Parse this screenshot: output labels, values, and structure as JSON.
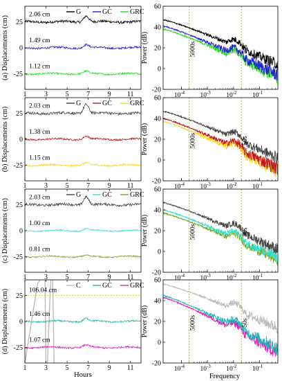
{
  "chart_data": [
    {
      "type": "line",
      "panel": "a",
      "ylabel": "(a) Displacements (cm)",
      "xlim": [
        1,
        12
      ],
      "ylim": [
        -40,
        40
      ],
      "xticks": [
        1,
        3,
        5,
        7,
        9,
        11
      ],
      "yticks": [
        -25,
        0,
        25
      ],
      "legend": [
        "G",
        "GC",
        "GRC"
      ],
      "series": [
        {
          "name": "G",
          "color": "#000000",
          "offset": 25,
          "noise": 1.2,
          "bump": 6
        },
        {
          "name": "GC",
          "color": "#1f1fd0",
          "offset": 0,
          "noise": 0.9,
          "bump": 3
        },
        {
          "name": "GRC",
          "color": "#22dd22",
          "offset": -25,
          "noise": 0.8,
          "bump": 2
        }
      ],
      "annotations": [
        "2.06 cm",
        "1.49 cm",
        "1.12 cm"
      ]
    },
    {
      "type": "line",
      "panel": "b",
      "ylabel": "(b) Displacements (cm)",
      "xlim": [
        1,
        12
      ],
      "ylim": [
        -40,
        40
      ],
      "xticks": [
        1,
        3,
        5,
        7,
        9,
        11
      ],
      "yticks": [
        -25,
        0,
        25
      ],
      "legend": [
        "G",
        "GC",
        "GRC"
      ],
      "series": [
        {
          "name": "G",
          "color": "#444444",
          "offset": 25,
          "noise": 1.2,
          "bump": 9
        },
        {
          "name": "GC",
          "color": "#c0181c",
          "offset": 0,
          "noise": 0.8,
          "bump": 3
        },
        {
          "name": "GRC",
          "color": "#ffd21a",
          "offset": -25,
          "noise": 0.8,
          "bump": 2
        }
      ],
      "annotations": [
        "2.03 cm",
        "1.38 cm",
        "1.15 cm"
      ]
    },
    {
      "type": "line",
      "panel": "c",
      "ylabel": "(c) Displacements (cm)",
      "xlim": [
        1,
        12
      ],
      "ylim": [
        -40,
        40
      ],
      "xticks": [
        1,
        3,
        5,
        7,
        9,
        11
      ],
      "yticks": [
        -25,
        0,
        25
      ],
      "legend": [
        "G",
        "GC",
        "GRC"
      ],
      "series": [
        {
          "name": "G",
          "color": "#444444",
          "offset": 25,
          "noise": 1.2,
          "bump": 8
        },
        {
          "name": "GC",
          "color": "#2ee0d0",
          "offset": 0,
          "noise": 0.6,
          "bump": 2
        },
        {
          "name": "GRC",
          "color": "#7aa81e",
          "offset": -25,
          "noise": 0.6,
          "bump": 1
        }
      ],
      "annotations": [
        "2.03 cm",
        "1.00 cm",
        "0.81 cm"
      ]
    },
    {
      "type": "line",
      "panel": "d",
      "ylabel": "(d) Displacements (cm)",
      "xlabel": "Hours",
      "xlim": [
        1,
        12
      ],
      "ylim": [
        -40,
        40
      ],
      "xticks": [
        1,
        3,
        5,
        7,
        9,
        11
      ],
      "yticks": [
        -25,
        0,
        25
      ],
      "legend": [
        "C",
        "GC",
        "GRC"
      ],
      "series": [
        {
          "name": "C",
          "color": "#bbbbbb",
          "offset": 0,
          "noise": 0,
          "bump": 0
        },
        {
          "name": "GC",
          "color": "#1fb8b0",
          "offset": 0,
          "noise": 0.8,
          "bump": 3
        },
        {
          "name": "GRC",
          "color": "#e020c0",
          "offset": -25,
          "noise": 0.8,
          "bump": 2
        }
      ],
      "annotations": [
        "106.04 cm",
        "1.46 cm",
        "1.07 cm"
      ]
    },
    {
      "type": "line",
      "panel": "a-psd",
      "ylabel": "Power (dB)",
      "xscale": "log",
      "xlim": [
        2e-05,
        0.5
      ],
      "ylim": [
        -20,
        60
      ],
      "yticks": [
        -20,
        0,
        20,
        40,
        60
      ],
      "xticklabels": [
        "10^-4",
        "10^-3",
        "10^-2",
        "10^-1"
      ],
      "vlines": [
        {
          "x": 0.0002,
          "label": "5000s"
        },
        {
          "x": 0.02,
          "label": "50s"
        }
      ],
      "series": [
        {
          "name": "G",
          "color": "#000000",
          "start": 47,
          "end": 4,
          "spread": 4
        },
        {
          "name": "GC",
          "color": "#1f1fd0",
          "start": 41,
          "end": -6,
          "spread": 5
        },
        {
          "name": "GRC",
          "color": "#22dd22",
          "start": 38,
          "end": -8,
          "spread": 5
        }
      ]
    },
    {
      "type": "line",
      "panel": "b-psd",
      "ylabel": "Power (dB)",
      "xscale": "log",
      "xlim": [
        2e-05,
        0.5
      ],
      "ylim": [
        -20,
        60
      ],
      "yticks": [
        -20,
        0,
        20,
        40,
        60
      ],
      "xticklabels": [
        "10^-4",
        "10^-3",
        "10^-2",
        "10^-1"
      ],
      "vlines": [
        {
          "x": 0.0002,
          "label": "5000s"
        },
        {
          "x": 0.02,
          "label": "50s"
        }
      ],
      "series": [
        {
          "name": "G",
          "color": "#444444",
          "start": 47,
          "end": 2,
          "spread": 4
        },
        {
          "name": "GC",
          "color": "#c0181c",
          "start": 40,
          "end": -8,
          "spread": 5
        },
        {
          "name": "GRC",
          "color": "#ffd21a",
          "start": 37,
          "end": -10,
          "spread": 5
        }
      ]
    },
    {
      "type": "line",
      "panel": "c-psd",
      "ylabel": "Power (dB)",
      "xscale": "log",
      "xlim": [
        2e-05,
        0.5
      ],
      "ylim": [
        -20,
        60
      ],
      "yticks": [
        -20,
        0,
        20,
        40,
        60
      ],
      "xticklabels": [
        "10^-4",
        "10^-3",
        "10^-2",
        "10^-1"
      ],
      "vlines": [
        {
          "x": 0.0002,
          "label": "5000s"
        },
        {
          "x": 0.02,
          "label": "50s"
        }
      ],
      "series": [
        {
          "name": "G",
          "color": "#444444",
          "start": 47,
          "end": 2,
          "spread": 4
        },
        {
          "name": "GC",
          "color": "#2ee0d0",
          "start": 40,
          "end": -6,
          "spread": 4
        },
        {
          "name": "GRC",
          "color": "#7aa81e",
          "start": 37,
          "end": -8,
          "spread": 4
        }
      ]
    },
    {
      "type": "line",
      "panel": "d-psd",
      "ylabel": "Power (dB)",
      "xlabel": "Frequency",
      "xscale": "log",
      "xlim": [
        2e-05,
        0.5
      ],
      "ylim": [
        -20,
        60
      ],
      "yticks": [
        -20,
        0,
        20,
        40,
        60
      ],
      "xticklabels": [
        "10^-4",
        "10^-3",
        "10^-2",
        "10^-1"
      ],
      "vlines": [
        {
          "x": 0.0002,
          "label": "5000s"
        },
        {
          "x": 0.02,
          "label": "50s"
        }
      ],
      "series": [
        {
          "name": "C",
          "color": "#bbbbbb",
          "start": 56,
          "end": 14,
          "spread": 4
        },
        {
          "name": "GC",
          "color": "#1fb8b0",
          "start": 45,
          "end": -6,
          "spread": 5
        },
        {
          "name": "GRC",
          "color": "#e020c0",
          "start": 43,
          "end": -10,
          "spread": 5
        }
      ]
    }
  ]
}
